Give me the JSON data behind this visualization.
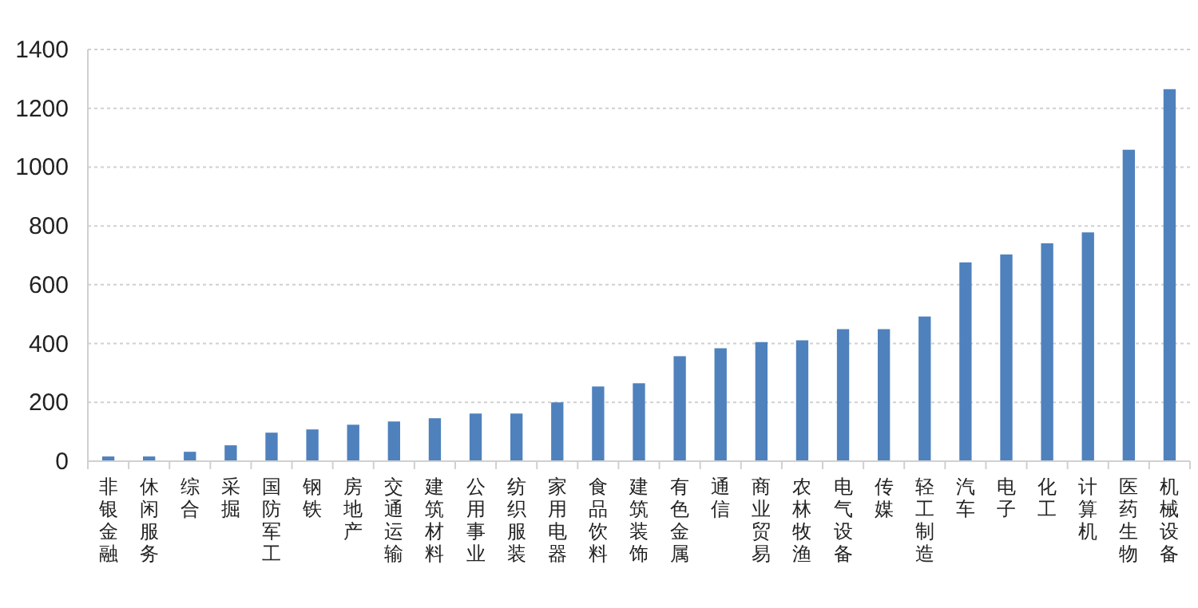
{
  "chart_data": {
    "type": "bar",
    "categories": [
      "非银金融",
      "休闲服务",
      "综合",
      "采掘",
      "国防军工",
      "钢铁",
      "房地产",
      "交通运输",
      "建筑材料",
      "公用事业",
      "纺织服装",
      "家用电器",
      "食品饮料",
      "建筑装饰",
      "有色金属",
      "通信",
      "商业贸易",
      "农林牧渔",
      "电气设备",
      "传媒",
      "轻工制造",
      "汽车",
      "电子",
      "化工",
      "计算机",
      "医药生物",
      "机械设备"
    ],
    "values": [
      16,
      16,
      32,
      54,
      97,
      108,
      124,
      135,
      146,
      162,
      162,
      200,
      254,
      265,
      357,
      384,
      405,
      411,
      449,
      449,
      492,
      676,
      703,
      741,
      778,
      1059,
      1265
    ],
    "color": "#4f81bd",
    "ylim": [
      0,
      1400
    ],
    "yticks": [
      0,
      200,
      400,
      600,
      800,
      1000,
      1200,
      1400
    ],
    "grid": "y"
  }
}
